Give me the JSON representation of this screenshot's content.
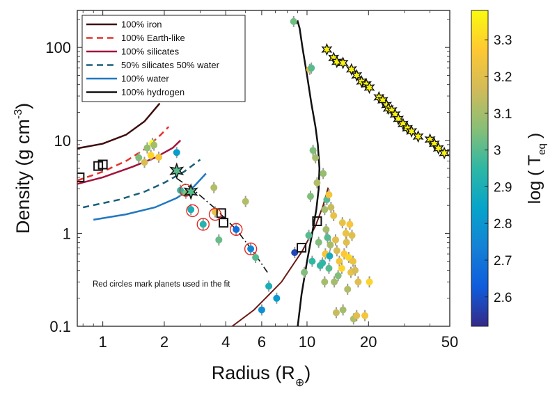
{
  "chart_data": {
    "type": "scatter",
    "x_scale": "log",
    "y_scale": "log",
    "xlim": [
      0.75,
      50
    ],
    "ylim": [
      0.1,
      250
    ],
    "x_ticks": [
      {
        "value": 1,
        "label": "1"
      },
      {
        "value": 2,
        "label": "2"
      },
      {
        "value": 4,
        "label": "4"
      },
      {
        "value": 6,
        "label": "6"
      },
      {
        "value": 10,
        "label": "10"
      },
      {
        "value": 20,
        "label": "20"
      },
      {
        "value": 50,
        "label": "50"
      }
    ],
    "y_ticks": [
      {
        "value": 0.1,
        "label": "0.1"
      },
      {
        "value": 1,
        "label": "1"
      },
      {
        "value": 10,
        "label": "10"
      },
      {
        "value": 100,
        "label": "100"
      }
    ],
    "xlabel": {
      "text": "Radius (R",
      "sub": "⊕",
      "close": ")"
    },
    "ylabel": {
      "text": "Density (g cm",
      "sup": "-3",
      "close": ")"
    },
    "colorbar": {
      "label_prefix": "log ( T",
      "label_sub": "eq",
      "label_suffix": " )",
      "range": [
        2.52,
        3.38
      ],
      "ticks": [
        "2.6",
        "2.7",
        "2.8",
        "2.9",
        "3",
        "3.1",
        "3.2",
        "3.3"
      ],
      "colormap": [
        "#352a87",
        "#0f5cdd",
        "#1481d6",
        "#06a4ca",
        "#2eb7a4",
        "#87bf77",
        "#d1bb59",
        "#fec832",
        "#f9fb0e"
      ]
    },
    "annotation": "Red circles mark planets used in the fit",
    "legend": {
      "position": "top-left"
    },
    "models": [
      {
        "name": "100% iron",
        "color": "#3d0c0c",
        "dash": "solid",
        "points": [
          [
            0.75,
            8.2
          ],
          [
            1.0,
            9.2
          ],
          [
            1.3,
            11.5
          ],
          [
            1.6,
            16
          ],
          [
            1.9,
            25
          ]
        ]
      },
      {
        "name": "100% Earth-like",
        "color": "#e8302a",
        "dash": "dashed",
        "points": [
          [
            0.75,
            3.7
          ],
          [
            1.0,
            4.6
          ],
          [
            1.3,
            6.0
          ],
          [
            1.6,
            8.0
          ],
          [
            1.9,
            11.2
          ],
          [
            2.1,
            14.0
          ]
        ]
      },
      {
        "name": "100% silicates",
        "color": "#a0143c",
        "dash": "solid",
        "points": [
          [
            0.75,
            3.4
          ],
          [
            1.0,
            4.0
          ],
          [
            1.4,
            5.2
          ],
          [
            1.8,
            6.5
          ],
          [
            2.2,
            8.3
          ],
          [
            2.4,
            10.0
          ]
        ]
      },
      {
        "name": "50% silicates 50% water",
        "color": "#1a5f7a",
        "dash": "dashed",
        "points": [
          [
            0.8,
            1.9
          ],
          [
            1.2,
            2.3
          ],
          [
            1.6,
            2.8
          ],
          [
            2.0,
            3.5
          ],
          [
            2.5,
            4.6
          ],
          [
            3.0,
            6.2
          ]
        ]
      },
      {
        "name": "100% water",
        "color": "#1f78c1",
        "dash": "solid",
        "points": [
          [
            0.9,
            1.4
          ],
          [
            1.3,
            1.6
          ],
          [
            1.8,
            1.9
          ],
          [
            2.3,
            2.4
          ],
          [
            2.8,
            3.2
          ],
          [
            3.2,
            4.4
          ]
        ]
      },
      {
        "name": "100% hydrogen",
        "color": "#111111",
        "dash": "solid",
        "points": [
          [
            9.0,
            0.1
          ],
          [
            9.4,
            0.22
          ],
          [
            10.0,
            0.5
          ],
          [
            10.6,
            1.0
          ],
          [
            11.1,
            1.8
          ],
          [
            11.4,
            3.0
          ],
          [
            11.5,
            5.0
          ],
          [
            11.3,
            9.0
          ],
          [
            11.0,
            14
          ],
          [
            10.5,
            25
          ],
          [
            10.0,
            50
          ],
          [
            9.5,
            100
          ],
          [
            9.2,
            160
          ],
          [
            9.0,
            190
          ],
          [
            8.8,
            180
          ]
        ]
      }
    ],
    "extra_curves": [
      {
        "color": "#6b1a14",
        "dash": "solid",
        "points": [
          [
            4.3,
            0.1
          ],
          [
            5.5,
            0.15
          ],
          [
            7.5,
            0.3
          ],
          [
            9.5,
            0.65
          ],
          [
            11.0,
            1.2
          ],
          [
            12.0,
            2.0
          ],
          [
            12.7,
            3.1
          ]
        ]
      },
      {
        "color": "#111111",
        "dash": "dashdot",
        "points": [
          [
            2.3,
            3.9
          ],
          [
            2.8,
            2.9
          ],
          [
            3.5,
            1.9
          ],
          [
            4.5,
            1.1
          ],
          [
            5.5,
            0.62
          ],
          [
            6.4,
            0.38
          ]
        ]
      }
    ],
    "planets": [
      {
        "r": 1.5,
        "d": 6.5,
        "t": 3.05
      },
      {
        "r": 1.65,
        "d": 8.3,
        "t": 3.08
      },
      {
        "r": 1.75,
        "d": 9.3,
        "t": 3.38
      },
      {
        "r": 1.88,
        "d": 6.6,
        "t": 3.25
      },
      {
        "r": 1.78,
        "d": 8.9,
        "t": 3.1
      },
      {
        "r": 1.72,
        "d": 6.9,
        "t": 3.3
      },
      {
        "r": 1.6,
        "d": 5.8,
        "t": 3.18
      },
      {
        "r": 2.3,
        "d": 7.4,
        "t": 2.82
      },
      {
        "r": 2.4,
        "d": 2.9,
        "t": 2.95
      },
      {
        "r": 2.55,
        "d": 2.7,
        "t": 3.05
      },
      {
        "r": 2.7,
        "d": 1.8,
        "t": 2.9
      },
      {
        "r": 3.1,
        "d": 1.25,
        "t": 2.93
      },
      {
        "r": 3.5,
        "d": 3.1,
        "t": 3.12
      },
      {
        "r": 3.55,
        "d": 1.7,
        "t": 3.22
      },
      {
        "r": 3.7,
        "d": 0.85,
        "t": 3.02
      },
      {
        "r": 4.5,
        "d": 1.1,
        "t": 2.68
      },
      {
        "r": 5.0,
        "d": 2.2,
        "t": 3.12
      },
      {
        "r": 5.3,
        "d": 0.68,
        "t": 2.75
      },
      {
        "r": 5.6,
        "d": 0.55,
        "t": 3.0
      },
      {
        "r": 6.5,
        "d": 0.27,
        "t": 2.9
      },
      {
        "r": 6.0,
        "d": 0.15,
        "t": 2.78
      },
      {
        "r": 7.1,
        "d": 0.2,
        "t": 2.82
      },
      {
        "r": 8.7,
        "d": 0.62,
        "t": 2.58
      },
      {
        "r": 8.6,
        "d": 190,
        "t": 3.03
      },
      {
        "r": 10.3,
        "d": 58,
        "t": 3.2
      },
      {
        "r": 10.5,
        "d": 60,
        "t": 3.0
      },
      {
        "r": 10.7,
        "d": 7.8,
        "t": 3.05
      },
      {
        "r": 11.0,
        "d": 6.5,
        "t": 3.1
      },
      {
        "r": 11.2,
        "d": 3.5,
        "t": 3.12
      },
      {
        "r": 12.0,
        "d": 4.4,
        "t": 3.08
      },
      {
        "r": 12.5,
        "d": 2.3,
        "t": 3.0
      },
      {
        "r": 12.2,
        "d": 1.8,
        "t": 3.1
      },
      {
        "r": 12.8,
        "d": 2.6,
        "t": 3.25
      },
      {
        "r": 13.1,
        "d": 1.9,
        "t": 3.15
      },
      {
        "r": 13.5,
        "d": 1.55,
        "t": 3.22
      },
      {
        "r": 12.4,
        "d": 1.1,
        "t": 3.1
      },
      {
        "r": 12.6,
        "d": 0.9,
        "t": 3.0
      },
      {
        "r": 13.0,
        "d": 0.75,
        "t": 3.1
      },
      {
        "r": 12.3,
        "d": 0.6,
        "t": 3.25
      },
      {
        "r": 13.8,
        "d": 0.85,
        "t": 3.2
      },
      {
        "r": 14.0,
        "d": 0.65,
        "t": 3.18
      },
      {
        "r": 14.4,
        "d": 0.5,
        "t": 3.25
      },
      {
        "r": 14.8,
        "d": 0.42,
        "t": 3.3
      },
      {
        "r": 15.2,
        "d": 0.6,
        "t": 3.27
      },
      {
        "r": 15.6,
        "d": 0.8,
        "t": 3.2
      },
      {
        "r": 16.0,
        "d": 0.55,
        "t": 3.3
      },
      {
        "r": 16.4,
        "d": 0.38,
        "t": 3.22
      },
      {
        "r": 16.8,
        "d": 0.5,
        "t": 3.23
      },
      {
        "r": 17.2,
        "d": 0.4,
        "t": 3.18
      },
      {
        "r": 17.8,
        "d": 0.3,
        "t": 3.2
      },
      {
        "r": 14.9,
        "d": 1.3,
        "t": 3.22
      },
      {
        "r": 15.5,
        "d": 1.0,
        "t": 3.23
      },
      {
        "r": 16.2,
        "d": 1.25,
        "t": 3.26
      },
      {
        "r": 16.6,
        "d": 0.95,
        "t": 3.2
      },
      {
        "r": 13.6,
        "d": 0.3,
        "t": 3.1
      },
      {
        "r": 14.2,
        "d": 0.35,
        "t": 3.05
      },
      {
        "r": 12.8,
        "d": 0.42,
        "t": 3.0
      },
      {
        "r": 12.2,
        "d": 0.3,
        "t": 3.1
      },
      {
        "r": 15.8,
        "d": 0.25,
        "t": 3.12
      },
      {
        "r": 15.0,
        "d": 0.15,
        "t": 3.1
      },
      {
        "r": 16.9,
        "d": 0.12,
        "t": 3.12
      },
      {
        "r": 17.5,
        "d": 0.13,
        "t": 3.2
      },
      {
        "r": 20.2,
        "d": 0.3,
        "t": 3.3
      },
      {
        "r": 19.2,
        "d": 0.13,
        "t": 3.25
      },
      {
        "r": 13.9,
        "d": 0.14,
        "t": 3.15
      },
      {
        "r": 11.9,
        "d": 0.48,
        "t": 2.95
      },
      {
        "r": 10.4,
        "d": 2.5,
        "t": 3.05
      },
      {
        "r": 10.2,
        "d": 0.95,
        "t": 3.0
      },
      {
        "r": 10.6,
        "d": 0.5,
        "t": 2.95
      },
      {
        "r": 9.7,
        "d": 0.38,
        "t": 3.05
      },
      {
        "r": 11.6,
        "d": 0.45,
        "t": 2.95
      },
      {
        "r": 12.9,
        "d": 0.57,
        "t": 2.88
      },
      {
        "r": 11.4,
        "d": 0.8,
        "t": 3.05
      }
    ],
    "hot_jupiters_stars": [
      {
        "r": 12.5,
        "d": 95
      },
      {
        "r": 13.5,
        "d": 77
      },
      {
        "r": 14.0,
        "d": 70
      },
      {
        "r": 15.0,
        "d": 68
      },
      {
        "r": 16.5,
        "d": 58
      },
      {
        "r": 17.5,
        "d": 50
      },
      {
        "r": 18.5,
        "d": 43
      },
      {
        "r": 19.5,
        "d": 40
      },
      {
        "r": 20.2,
        "d": 37
      },
      {
        "r": 22.5,
        "d": 29
      },
      {
        "r": 23.5,
        "d": 27
      },
      {
        "r": 24.5,
        "d": 24
      },
      {
        "r": 25.0,
        "d": 22
      },
      {
        "r": 26.0,
        "d": 21
      },
      {
        "r": 27.0,
        "d": 19
      },
      {
        "r": 28.0,
        "d": 17
      },
      {
        "r": 29.5,
        "d": 15
      },
      {
        "r": 31.0,
        "d": 13.5
      },
      {
        "r": 32.5,
        "d": 12.5
      },
      {
        "r": 35.0,
        "d": 11
      },
      {
        "r": 40.0,
        "d": 10.2
      },
      {
        "r": 42.0,
        "d": 9.2
      },
      {
        "r": 44.0,
        "d": 8.2
      },
      {
        "r": 47.0,
        "d": 7.3
      }
    ],
    "squares": [
      {
        "r": 0.77,
        "d": 4.0
      },
      {
        "r": 0.95,
        "d": 5.3
      },
      {
        "r": 1.0,
        "d": 5.5
      },
      {
        "r": 3.8,
        "d": 1.65
      },
      {
        "r": 3.9,
        "d": 1.3
      },
      {
        "r": 9.4,
        "d": 0.7
      },
      {
        "r": 11.2,
        "d": 1.35
      }
    ],
    "fit_stars": [
      {
        "r": 2.3,
        "d": 4.7,
        "t": 3.0
      },
      {
        "r": 2.7,
        "d": 2.8,
        "t": 3.0
      }
    ],
    "red_circles": [
      {
        "r": 2.55,
        "d": 2.9
      },
      {
        "r": 2.75,
        "d": 1.75
      },
      {
        "r": 3.1,
        "d": 1.25
      },
      {
        "r": 3.55,
        "d": 1.6
      },
      {
        "r": 4.5,
        "d": 1.1
      },
      {
        "r": 5.3,
        "d": 0.68
      }
    ]
  }
}
